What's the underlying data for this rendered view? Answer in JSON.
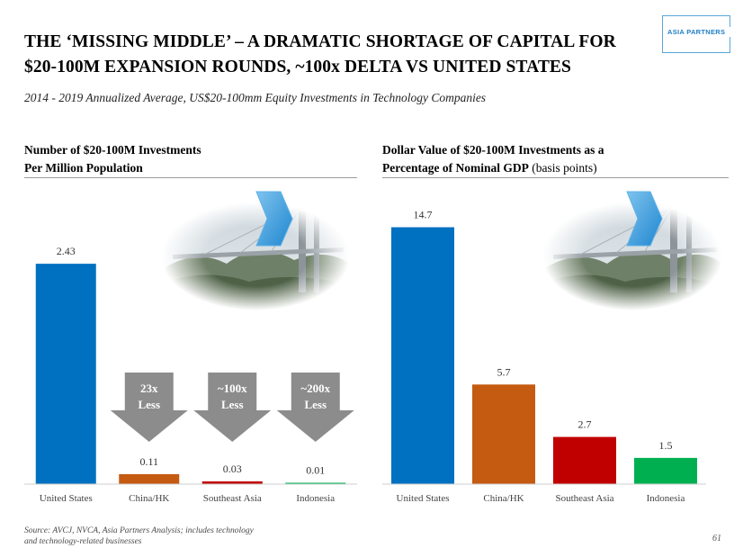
{
  "title_line1": "THE ‘MISSING MIDDLE’ – A DRAMATIC SHORTAGE OF CAPITAL FOR",
  "title_line2": "$20-100M EXPANSION ROUNDS, ~100x DELTA VS UNITED STATES",
  "logo_text": "ASIA PARTNERS",
  "subtitle": "2014 - 2019 Annualized Average, US$20-100mm Equity Investments in Technology Companies",
  "left_panel": {
    "title_line1": "Number of $20-100M Investments",
    "title_line2": "Per Million Population"
  },
  "right_panel": {
    "title_line1": "Dollar Value of $20-100M Investments as a",
    "title_line2_bold": "Percentage of Nominal GDP",
    "title_line2_light": " (basis points)"
  },
  "source_line1": "Source: AVCJ, NVCA, Asia Partners Analysis; includes technology",
  "source_line2": "and technology-related businesses",
  "page_number": "61",
  "chart_data": [
    {
      "type": "bar",
      "categories": [
        "United States",
        "China/HK",
        "Southeast Asia",
        "Indonesia"
      ],
      "values": [
        2.43,
        0.11,
        0.03,
        0.01
      ],
      "value_labels": [
        "2.43",
        "0.11",
        "0.03",
        "0.01"
      ],
      "colors": [
        "#0070c0",
        "#c55a11",
        "#c00000",
        "#00b050"
      ],
      "ylim": [
        0,
        2.6
      ],
      "annotations": [
        {
          "category": "China/HK",
          "line1": "23x",
          "line2": "Less"
        },
        {
          "category": "Southeast Asia",
          "line1": "~100x",
          "line2": "Less"
        },
        {
          "category": "Indonesia",
          "line1": "~200x",
          "line2": "Less"
        }
      ]
    },
    {
      "type": "bar",
      "categories": [
        "United States",
        "China/HK",
        "Southeast Asia",
        "Indonesia"
      ],
      "values": [
        14.7,
        5.7,
        2.7,
        1.5
      ],
      "value_labels": [
        "14.7",
        "5.7",
        "2.7",
        "1.5"
      ],
      "colors": [
        "#0070c0",
        "#c55a11",
        "#c00000",
        "#00b050"
      ],
      "ylim": [
        0,
        15.5
      ]
    }
  ]
}
